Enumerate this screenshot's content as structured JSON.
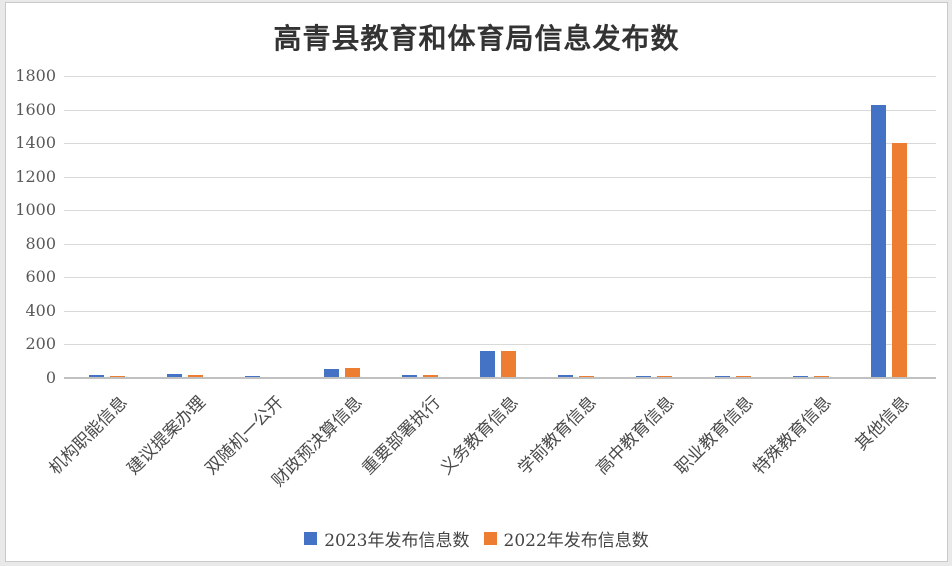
{
  "chart_data": {
    "type": "bar",
    "title": "高青县教育和体育局信息发布数",
    "categories": [
      "机构职能信息",
      "建议提案办理",
      "双随机一公开",
      "财政预决算信息",
      "重要部署执行",
      "义务教育信息",
      "学前教育信息",
      "高中教育信息",
      "职业教育信息",
      "特殊教育信息",
      "其他信息"
    ],
    "series": [
      {
        "name": "2023年发布信息数",
        "color": "#4472C4",
        "values": [
          20,
          22,
          12,
          55,
          20,
          160,
          20,
          12,
          12,
          12,
          1630
        ]
      },
      {
        "name": "2022年发布信息数",
        "color": "#ED7D31",
        "values": [
          10,
          16,
          8,
          57,
          15,
          160,
          10,
          12,
          13,
          12,
          1400
        ]
      }
    ],
    "xlabel": "",
    "ylabel": "",
    "ylim": [
      0,
      1800
    ],
    "ytick_step": 200,
    "yticks": [
      0,
      200,
      400,
      600,
      800,
      1000,
      1200,
      1400,
      1600,
      1800
    ],
    "grid": "horizontal",
    "legend_position": "bottom",
    "x_label_rotation_deg": 45
  },
  "colors": {
    "grid": "#d9d9d9",
    "axis_line": "#c0c0c0",
    "axis_text": "#595959",
    "title_text": "#333333",
    "card_border": "#c9c9c9"
  }
}
